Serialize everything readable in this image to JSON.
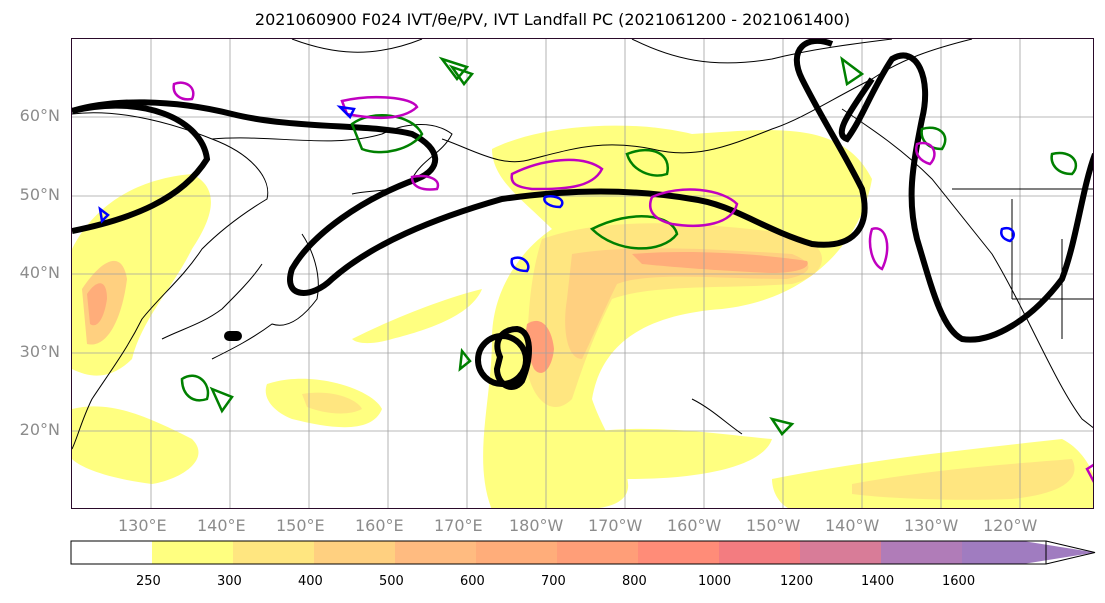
{
  "title": "2021060900 F024 IVT/θe/PV, IVT Landfall PC (2021061200 - 2021061400)",
  "map": {
    "lat_labels": [
      "60°N",
      "50°N",
      "40°N",
      "30°N",
      "20°N"
    ],
    "lon_labels": [
      "130°E",
      "140°E",
      "150°E",
      "160°E",
      "170°E",
      "180°W",
      "170°W",
      "160°W",
      "150°W",
      "140°W",
      "130°W",
      "120°W"
    ],
    "colors": {
      "contour_black": "#000000",
      "contour_green": "#008000",
      "contour_magenta": "#c000c0",
      "contour_blue": "#0000ff",
      "coast": "#000000",
      "grid": "#a0a0a0"
    }
  },
  "colorbar": {
    "ticks": [
      "250",
      "300",
      "400",
      "500",
      "600",
      "700",
      "800",
      "1000",
      "1200",
      "1400",
      "1600"
    ],
    "colors": [
      "#ffffff",
      "#ffff80",
      "#ffe680",
      "#ffd080",
      "#ffbb80",
      "#ffad7a",
      "#ff9e78",
      "#ff8c78",
      "#f37c80",
      "#d87c98",
      "#b07cb8",
      "#a07cc0"
    ]
  }
}
